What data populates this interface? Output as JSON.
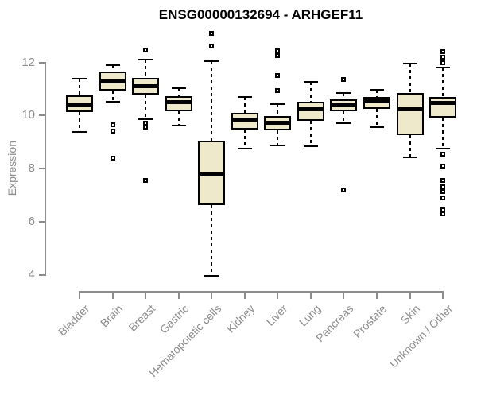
{
  "chart_data": {
    "type": "boxplot",
    "title": "ENSG00000132694 - ARHGEF11",
    "ylabel": "Expression",
    "xlabel": "",
    "y_ticks": [
      12,
      10,
      8,
      6,
      4
    ],
    "ylim": [
      4,
      12
    ],
    "grid": false,
    "legend": null,
    "categories": [
      "Bladder",
      "Brain",
      "Breast",
      "Gastric",
      "Hematopoietic cells",
      "Kidney",
      "Liver",
      "Lung",
      "Pancreas",
      "Prostate",
      "Skin",
      "Unknown / Other"
    ],
    "boxes": [
      {
        "category": "Bladder",
        "whisker_low": 9.38,
        "q1": 10.13,
        "median": 10.4,
        "q3": 10.76,
        "whisker_high": 11.39,
        "outliers": []
      },
      {
        "category": "Brain",
        "whisker_low": 10.52,
        "q1": 10.94,
        "median": 11.31,
        "q3": 11.66,
        "whisker_high": 11.9,
        "outliers": [
          9.65,
          9.41,
          8.39
        ]
      },
      {
        "category": "Breast",
        "whisker_low": 9.86,
        "q1": 10.79,
        "median": 11.12,
        "q3": 11.42,
        "whisker_high": 12.1,
        "outliers": [
          12.46,
          9.72,
          9.57,
          7.55
        ]
      },
      {
        "category": "Gastric",
        "whisker_low": 9.61,
        "q1": 10.16,
        "median": 10.51,
        "q3": 10.73,
        "whisker_high": 11.04,
        "outliers": []
      },
      {
        "category": "Hematopoietic cells",
        "whisker_low": 3.97,
        "q1": 6.62,
        "median": 7.8,
        "q3": 9.04,
        "whisker_high": 12.05,
        "outliers": [
          13.1,
          12.61
        ]
      },
      {
        "category": "Kidney",
        "whisker_low": 8.76,
        "q1": 9.47,
        "median": 9.86,
        "q3": 10.09,
        "whisker_high": 10.71,
        "outliers": []
      },
      {
        "category": "Liver",
        "whisker_low": 8.87,
        "q1": 9.44,
        "median": 9.73,
        "q3": 9.98,
        "whisker_high": 10.44,
        "outliers": [
          12.43,
          12.25,
          11.51,
          10.95
        ]
      },
      {
        "category": "Lung",
        "whisker_low": 8.84,
        "q1": 9.81,
        "median": 10.24,
        "q3": 10.51,
        "whisker_high": 11.28,
        "outliers": []
      },
      {
        "category": "Pancreas",
        "whisker_low": 9.71,
        "q1": 10.16,
        "median": 10.39,
        "q3": 10.61,
        "whisker_high": 10.86,
        "outliers": [
          11.35,
          7.2
        ]
      },
      {
        "category": "Prostate",
        "whisker_low": 9.56,
        "q1": 10.26,
        "median": 10.56,
        "q3": 10.71,
        "whisker_high": 10.96,
        "outliers": []
      },
      {
        "category": "Skin",
        "whisker_low": 8.41,
        "q1": 9.26,
        "median": 10.26,
        "q3": 10.86,
        "whisker_high": 11.96,
        "outliers": []
      },
      {
        "category": "Unknown / Other",
        "whisker_low": 8.74,
        "q1": 9.91,
        "median": 10.49,
        "q3": 10.71,
        "whisker_high": 11.81,
        "outliers": [
          12.4,
          12.2,
          12.0,
          8.55,
          8.1,
          7.55,
          7.3,
          7.12,
          6.9,
          6.45,
          6.3
        ]
      }
    ],
    "styles": {
      "box_fill": "#EFE9CC",
      "box_border": "#000000",
      "median_color": "#000000",
      "whisker_style": "dashed",
      "axis_color": "#8C8C8C",
      "title_color": "#000000"
    }
  }
}
